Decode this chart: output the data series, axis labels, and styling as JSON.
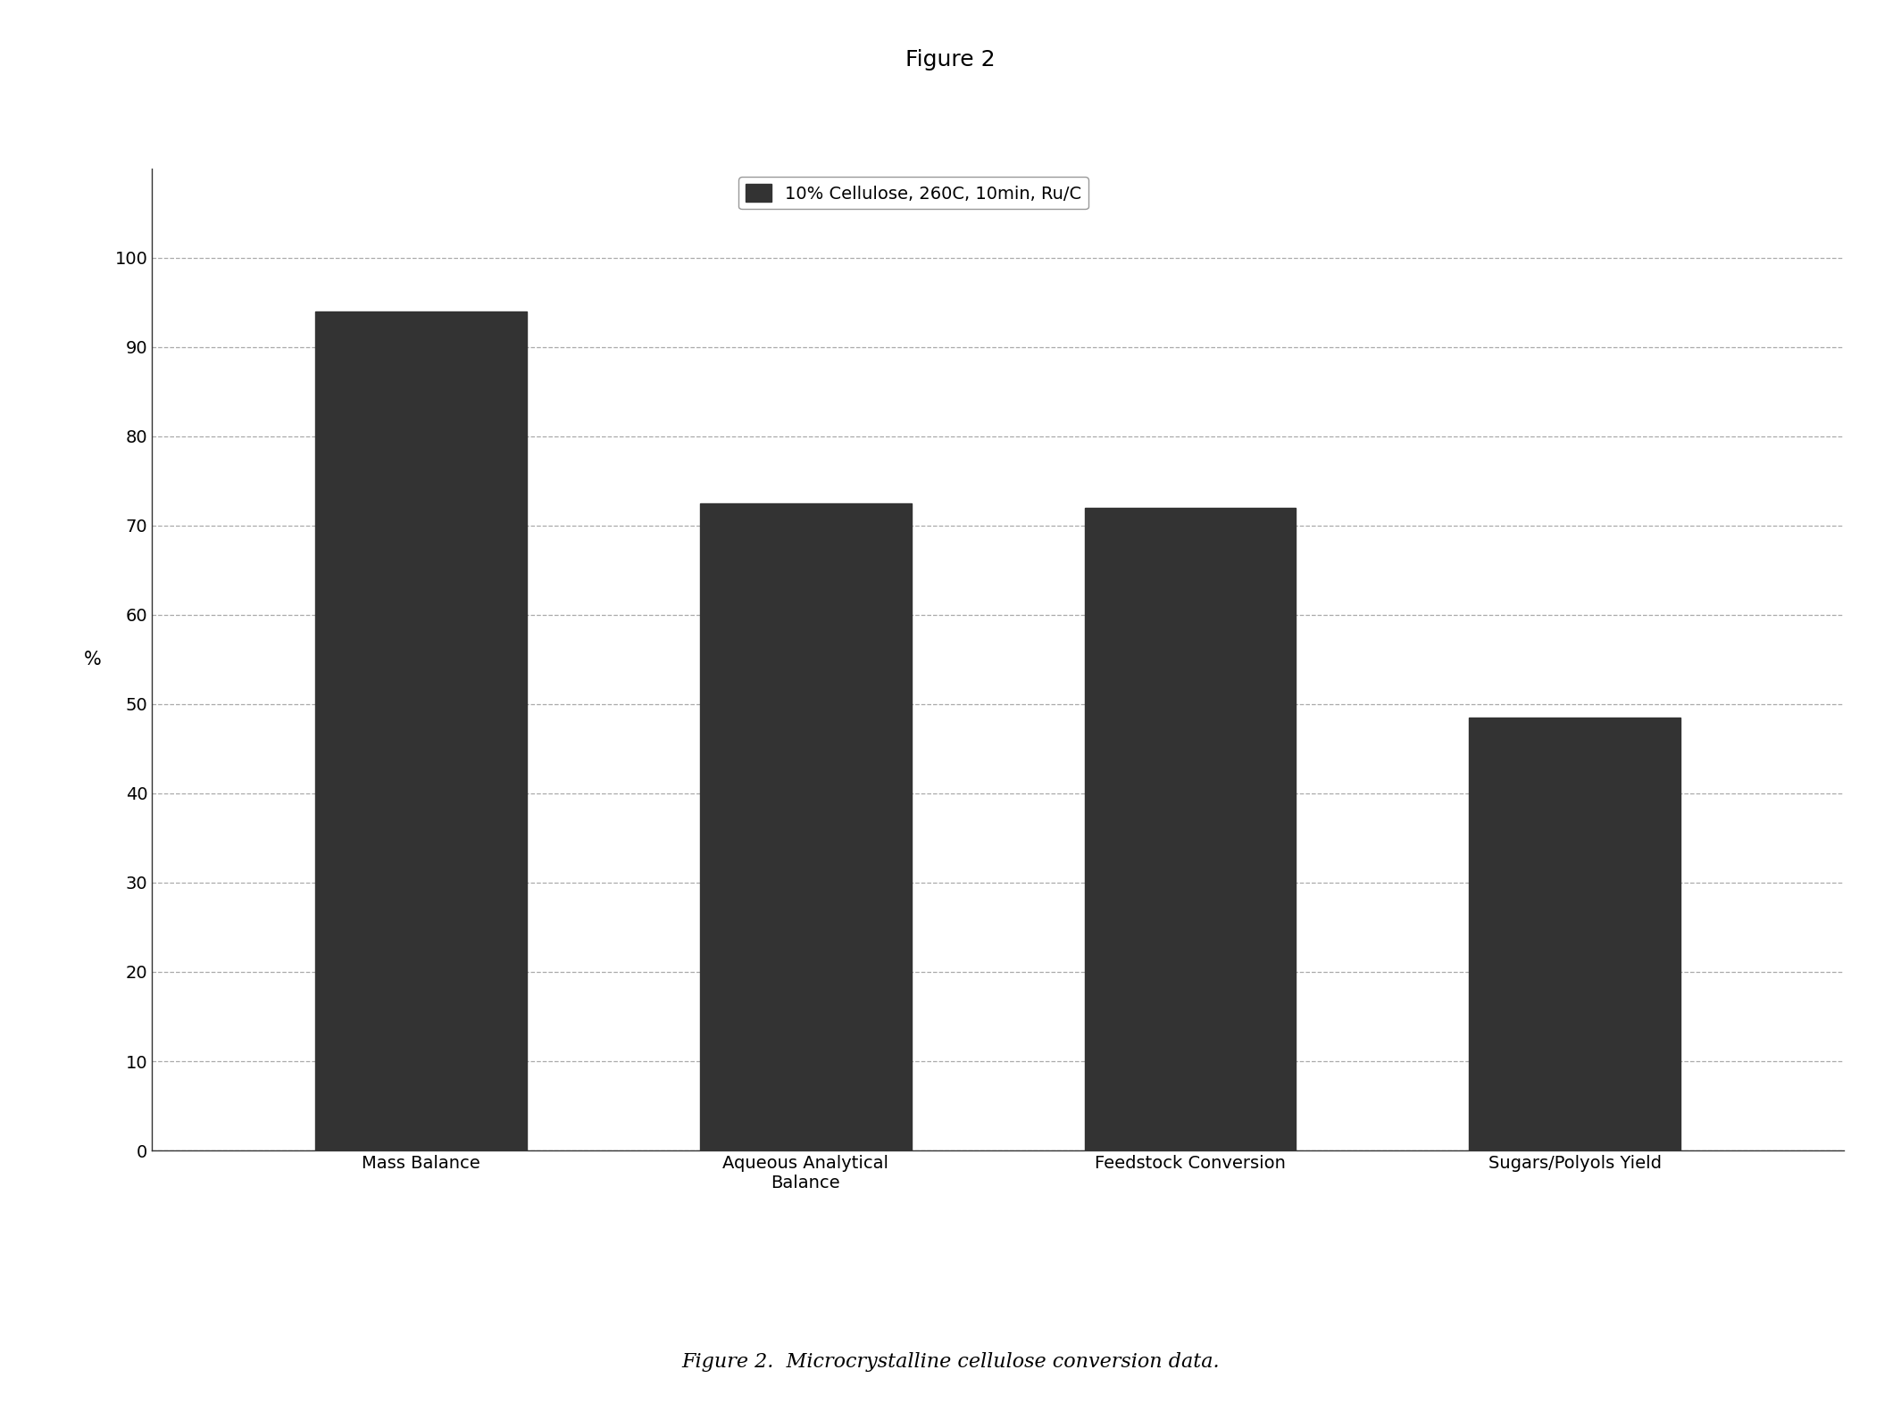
{
  "title": "Figure 2",
  "caption": "Figure 2.  Microcrystalline cellulose conversion data.",
  "legend_label": "10% Cellulose, 260C, 10min, Ru/C",
  "categories": [
    "Mass Balance",
    "Aqueous Analytical\nBalance",
    "Feedstock Conversion",
    "Sugars/Polyols Yield"
  ],
  "values": [
    94.0,
    72.5,
    72.0,
    48.5
  ],
  "bar_color": "#333333",
  "ylabel": "%",
  "ylim": [
    0,
    110
  ],
  "yticks": [
    0,
    10,
    20,
    30,
    40,
    50,
    60,
    70,
    80,
    90,
    100
  ],
  "grid_color": "#aaaaaa",
  "background_color": "#ffffff",
  "title_fontsize": 18,
  "label_fontsize": 15,
  "tick_fontsize": 14,
  "legend_fontsize": 14,
  "caption_fontsize": 16,
  "bar_width": 0.55
}
